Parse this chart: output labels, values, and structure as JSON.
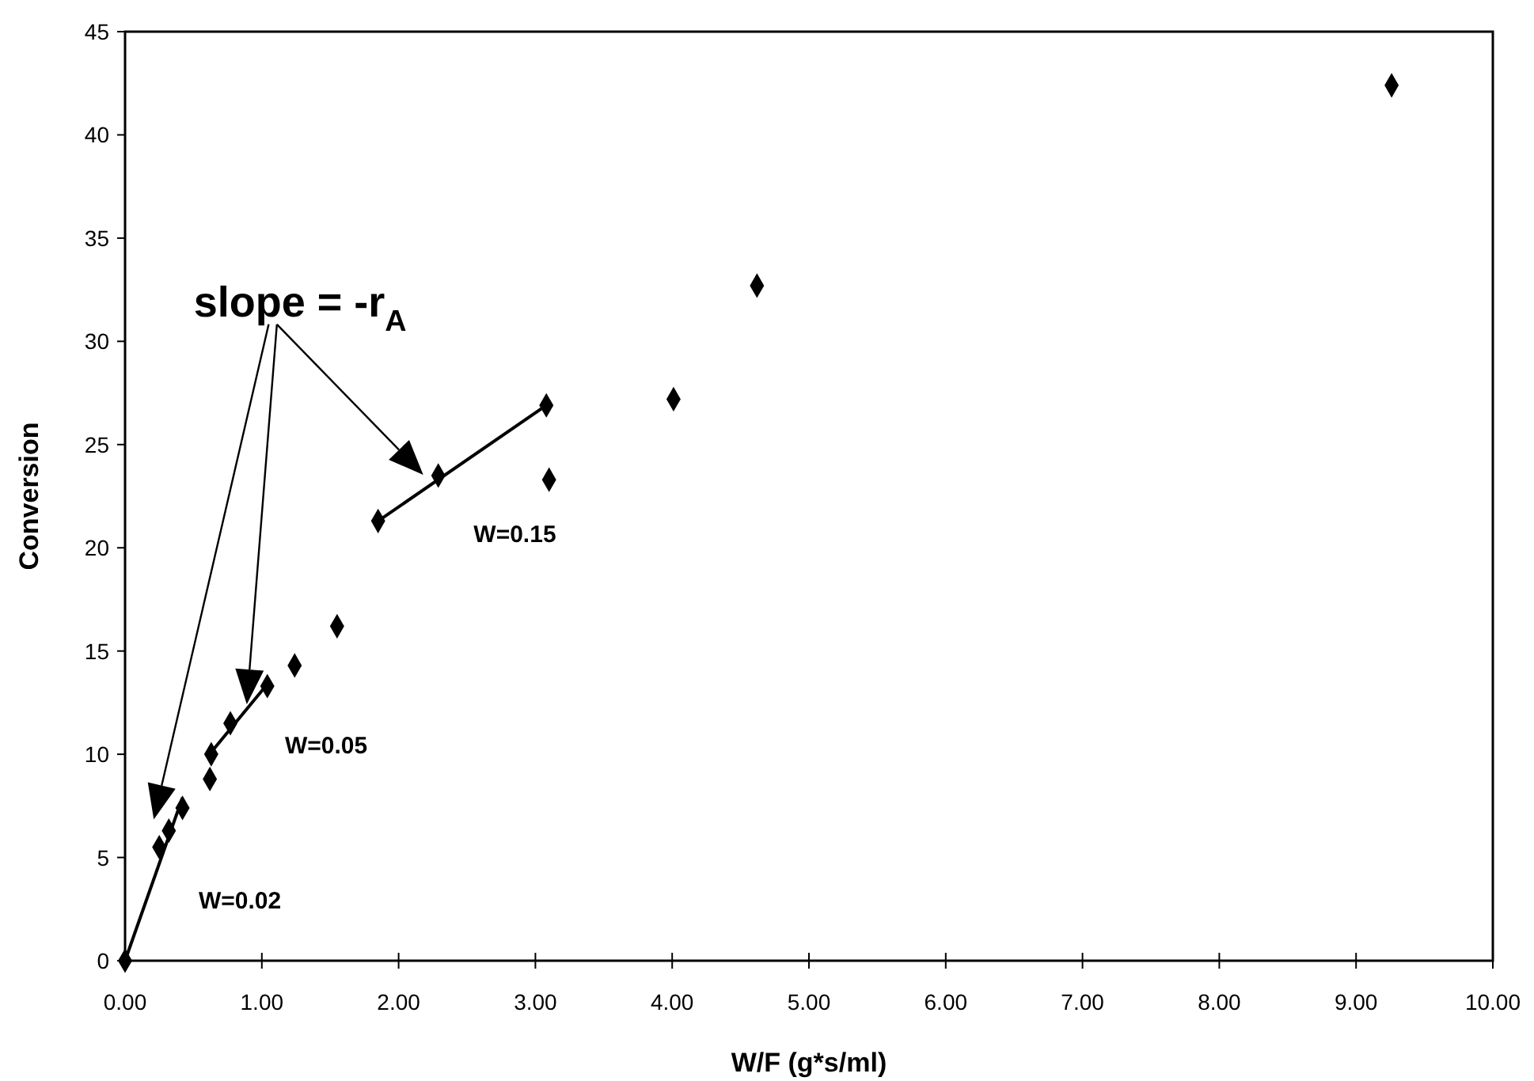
{
  "chart_data": {
    "type": "scatter",
    "xlabel": "W/F (g*s/ml)",
    "ylabel": "Conversion",
    "xlim": [
      0,
      10
    ],
    "ylim": [
      0,
      45
    ],
    "xticks": [
      {
        "value": 0,
        "label": "0.00"
      },
      {
        "value": 1,
        "label": "1.00"
      },
      {
        "value": 2,
        "label": "2.00"
      },
      {
        "value": 3,
        "label": "3.00"
      },
      {
        "value": 4,
        "label": "4.00"
      },
      {
        "value": 5,
        "label": "5.00"
      },
      {
        "value": 6,
        "label": "6.00"
      },
      {
        "value": 7,
        "label": "7.00"
      },
      {
        "value": 8,
        "label": "8.00"
      },
      {
        "value": 9,
        "label": "9.00"
      },
      {
        "value": 10,
        "label": "10.00"
      }
    ],
    "yticks": [
      0,
      5,
      10,
      15,
      20,
      25,
      30,
      35,
      40,
      45
    ],
    "grid": false,
    "series": [
      {
        "color": "#000000",
        "marker": "diamond",
        "x": [
          0,
          0.25,
          0.32,
          0.42,
          0.62,
          0.63,
          0.77,
          1.04,
          1.24,
          1.55,
          1.85,
          2.29,
          3.08,
          3.1,
          4.01,
          4.62,
          9.26
        ],
        "values": [
          0,
          5.5,
          6.3,
          7.4,
          8.8,
          10,
          11.5,
          13.3,
          14.3,
          16.2,
          21.3,
          23.5,
          26.9,
          23.3,
          27.2,
          32.7,
          42.4
        ]
      },
      {
        "type": "line",
        "color": "#000000",
        "marker": "none",
        "line_style": "solid",
        "x": [
          0,
          0.42
        ],
        "values": [
          0,
          7.9
        ]
      },
      {
        "type": "line",
        "color": "#000000",
        "marker": "none",
        "line_style": "solid",
        "x": [
          0.63,
          1.04
        ],
        "values": [
          10.1,
          13.4
        ]
      },
      {
        "type": "line",
        "color": "#000000",
        "marker": "none",
        "line_style": "solid",
        "x": [
          1.85,
          3.08
        ],
        "values": [
          21.3,
          26.9
        ]
      }
    ],
    "annotations": [
      "slope = -r$_{A}$",
      "W=0.02",
      "W=0.05",
      "W=0.15"
    ]
  }
}
